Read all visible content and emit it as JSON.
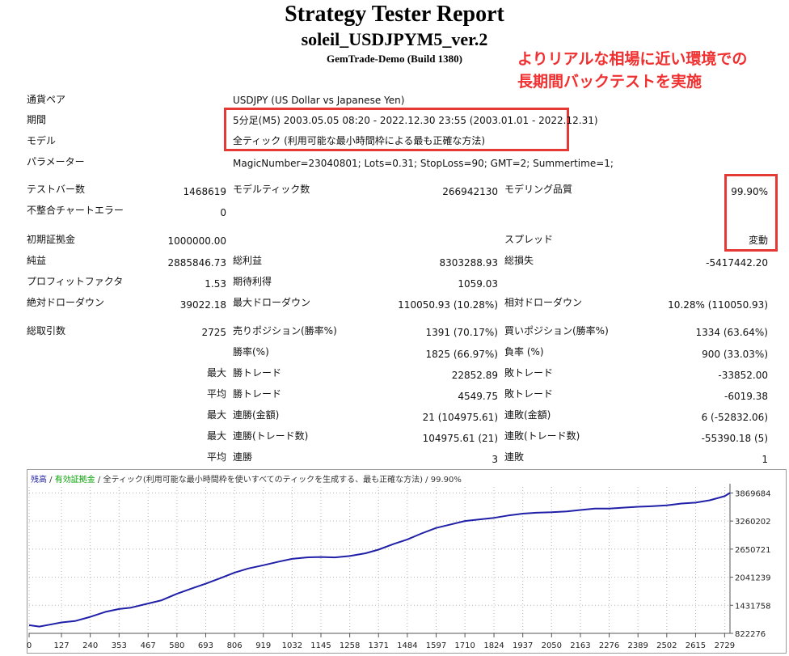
{
  "header": {
    "title": "Strategy Tester Report",
    "subtitle": "soleil_USDJPYM5_ver.2",
    "server": "GemTrade-Demo (Build 1380)"
  },
  "annotation": {
    "line1": "よりリアルな相場に近い環境での",
    "line2": "長期間バックテストを実施"
  },
  "info": {
    "pair_label": "通貨ペア",
    "pair_value": "USDJPY (US Dollar vs Japanese Yen)",
    "period_label": "期間",
    "period_value": "5分足(M5) 2003.05.05 08:20 - 2022.12.30 23:55 (2003.01.01 - 2022.12.31)",
    "model_label": "モデル",
    "model_value": "全ティック (利用可能な最小時間枠による最も正確な方法)",
    "params_label": "パラメーター",
    "params_value": "MagicNumber=23040801; Lots=0.31; StopLoss=90; GMT=2; Summertime=1;"
  },
  "stats": {
    "bars_label": "テストバー数",
    "bars_value": "1468619",
    "ticks_label": "モデルティック数",
    "ticks_value": "266942130",
    "quality_label": "モデリング品質",
    "quality_value": "99.90%",
    "errors_label": "不整合チャートエラー",
    "errors_value": "0",
    "deposit_label": "初期証拠金",
    "deposit_value": "1000000.00",
    "spread_label": "スプレッド",
    "spread_value": "変動",
    "net_label": "純益",
    "net_value": "2885846.73",
    "gross_profit_label": "総利益",
    "gross_profit_value": "8303288.93",
    "gross_loss_label": "総損失",
    "gross_loss_value": "-5417442.20",
    "pf_label": "プロフィットファクタ",
    "pf_value": "1.53",
    "expected_label": "期待利得",
    "expected_value": "1059.03",
    "abs_dd_label": "絶対ドローダウン",
    "abs_dd_value": "39022.18",
    "max_dd_label": "最大ドローダウン",
    "max_dd_value": "110050.93 (10.28%)",
    "rel_dd_label": "相対ドローダウン",
    "rel_dd_value": "10.28% (110050.93)",
    "trades_label": "総取引数",
    "trades_value": "2725",
    "short_label": "売りポジション(勝率%)",
    "short_value": "1391 (70.17%)",
    "long_label": "買いポジション(勝率%)",
    "long_value": "1334 (63.64%)",
    "win_label": "勝率(%)",
    "win_value": "1825 (66.97%)",
    "loss_label": "負率 (%)",
    "loss_value": "900 (33.03%)",
    "max_prefix": "最大",
    "avg_prefix": "平均",
    "max_win_label": "勝トレード",
    "max_win_value": "22852.89",
    "max_loss_label": "敗トレード",
    "max_loss_value": "-33852.00",
    "avg_win_label": "勝トレード",
    "avg_win_value": "4549.75",
    "avg_loss_label": "敗トレード",
    "avg_loss_value": "-6019.38",
    "cw_amount_label": "連勝(金額)",
    "cw_amount_value": "21 (104975.61)",
    "cl_amount_label": "連敗(金額)",
    "cl_amount_value": "6 (-52832.06)",
    "cw_trades_label": "連勝(トレード数)",
    "cw_trades_value": "104975.61 (21)",
    "cl_trades_label": "連敗(トレード数)",
    "cl_trades_value": "-55390.18 (5)",
    "avg_cw_label": "連勝",
    "avg_cw_value": "3",
    "avg_cl_label": "連敗",
    "avg_cl_value": "1"
  },
  "chart_data": {
    "type": "line",
    "legend_balance": "残高",
    "legend_sep1": " / ",
    "legend_equity": "有効証拠金",
    "legend_sep2": " / ",
    "legend_model": "全ティック(利用可能な最小時間枠を使いすべてのティックを生成する、最も正確な方法)",
    "legend_sep3": " / ",
    "legend_quality": "99.90%",
    "colors": {
      "balance": "#1f1fa8",
      "equity": "#00a000",
      "grid": "#b4b4b4"
    },
    "xticks": [
      0,
      127,
      240,
      353,
      467,
      580,
      693,
      806,
      919,
      1032,
      1145,
      1258,
      1371,
      1484,
      1597,
      1710,
      1824,
      1937,
      2050,
      2163,
      2276,
      2389,
      2502,
      2615,
      2729
    ],
    "yticks": [
      822276,
      1431758,
      2041239,
      2650721,
      3260202,
      3869684
    ],
    "xlim": [
      0,
      2750
    ],
    "ylim": [
      822276,
      4000000
    ],
    "series": [
      {
        "values_x": [
          0,
          40,
          80,
          127,
          180,
          240,
          300,
          353,
          400,
          467,
          520,
          580,
          640,
          693,
          750,
          806,
          860,
          919,
          980,
          1032,
          1090,
          1145,
          1200,
          1258,
          1320,
          1371,
          1430,
          1484,
          1540,
          1597,
          1650,
          1710,
          1760,
          1824,
          1880,
          1937,
          1990,
          2050,
          2110,
          2163,
          2220,
          2276,
          2330,
          2389,
          2440,
          2502,
          2560,
          2615,
          2670,
          2729,
          2750
        ],
        "values_y": [
          1000000,
          970000,
          1010000,
          1060000,
          1090000,
          1180000,
          1290000,
          1350000,
          1380000,
          1470000,
          1540000,
          1680000,
          1800000,
          1900000,
          2020000,
          2140000,
          2230000,
          2300000,
          2380000,
          2440000,
          2470000,
          2480000,
          2470000,
          2500000,
          2560000,
          2640000,
          2760000,
          2860000,
          2990000,
          3110000,
          3180000,
          3260000,
          3290000,
          3330000,
          3380000,
          3420000,
          3440000,
          3450000,
          3470000,
          3500000,
          3530000,
          3530000,
          3550000,
          3570000,
          3580000,
          3600000,
          3640000,
          3660000,
          3710000,
          3800000,
          3870000
        ]
      }
    ]
  }
}
